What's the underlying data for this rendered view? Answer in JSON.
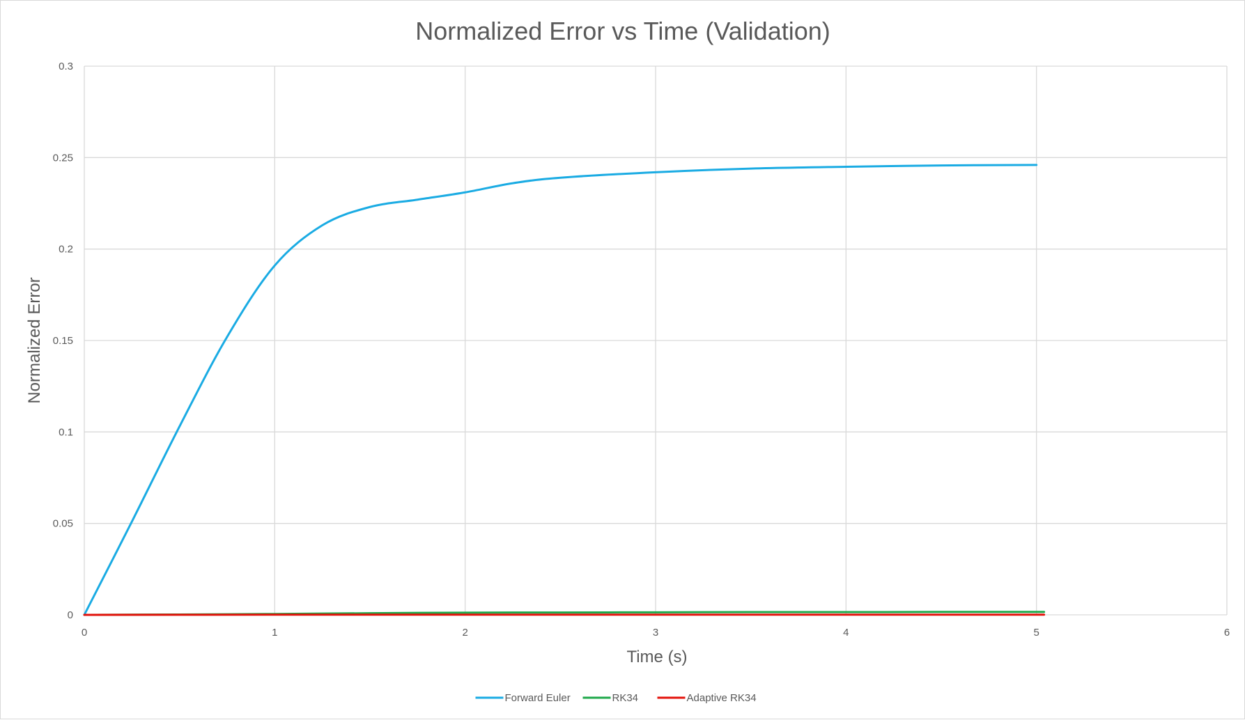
{
  "chart_data": {
    "type": "line",
    "title": "Normalized Error vs Time (Validation)",
    "xlabel": "Time (s)",
    "ylabel": "Normalized Error",
    "xlim": [
      0,
      6
    ],
    "ylim": [
      0,
      0.3
    ],
    "x_ticks": [
      0,
      1,
      2,
      3,
      4,
      5,
      6
    ],
    "y_ticks": [
      0,
      0.05,
      0.1,
      0.15,
      0.2,
      0.25,
      0.3
    ],
    "grid": true,
    "legend_position": "bottom",
    "series": [
      {
        "name": "Forward Euler",
        "color": "#1aabe3",
        "points": [
          [
            0,
            0
          ],
          [
            0.25,
            0.051
          ],
          [
            0.5,
            0.103
          ],
          [
            0.75,
            0.152
          ],
          [
            1.0,
            0.191
          ],
          [
            1.25,
            0.213
          ],
          [
            1.5,
            0.223
          ],
          [
            1.75,
            0.227
          ],
          [
            2.0,
            0.231
          ],
          [
            2.25,
            0.236
          ],
          [
            2.5,
            0.239
          ],
          [
            3.0,
            0.242
          ],
          [
            3.5,
            0.244
          ],
          [
            4.0,
            0.245
          ],
          [
            4.5,
            0.2457
          ],
          [
            5.0,
            0.246
          ]
        ]
      },
      {
        "name": "RK34",
        "color": "#1fa84a",
        "points": [
          [
            0,
            0
          ],
          [
            0.5,
            0.0002
          ],
          [
            1.0,
            0.0005
          ],
          [
            1.5,
            0.0009
          ],
          [
            2.0,
            0.0012
          ],
          [
            2.5,
            0.0013
          ],
          [
            3.0,
            0.0014
          ],
          [
            3.5,
            0.0015
          ],
          [
            4.0,
            0.0015
          ],
          [
            4.5,
            0.0016
          ],
          [
            5.04,
            0.0016
          ]
        ]
      },
      {
        "name": "Adaptive RK34",
        "color": "#e3120b",
        "points": [
          [
            0,
            0
          ],
          [
            1.0,
            0.0001
          ],
          [
            2.0,
            0.0001
          ],
          [
            3.0,
            0.0001
          ],
          [
            4.0,
            0.0001
          ],
          [
            5.04,
            0.0001
          ]
        ]
      }
    ]
  }
}
